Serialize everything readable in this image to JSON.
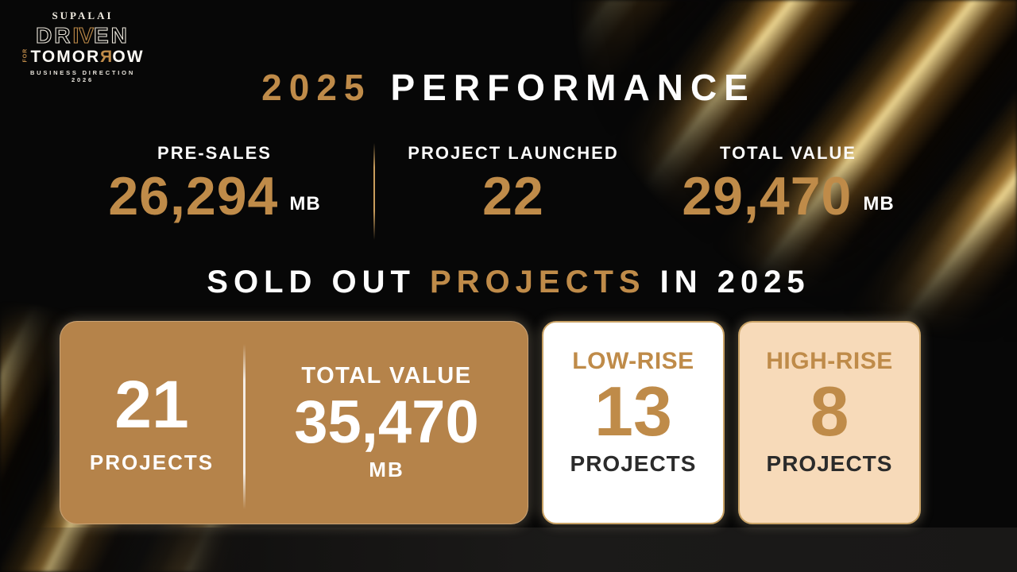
{
  "logo": {
    "brand": "SUPALAI",
    "driven": {
      "p1": "DR",
      "p2": "IV",
      "p3": "EN"
    },
    "for_text": "FOR",
    "tomorrow": {
      "p1": "TOMOR",
      "p2": "R",
      "p3": "OW"
    },
    "tagline": "BUSINESS DIRECTION 2026"
  },
  "title": {
    "year": "2025",
    "word": "PERFORMANCE"
  },
  "stats": [
    {
      "label": "PRE-SALES",
      "value": "26,294",
      "unit": "MB"
    },
    {
      "label": "PROJECT LAUNCHED",
      "value": "22",
      "unit": ""
    },
    {
      "label": "TOTAL VALUE",
      "value": "29,470",
      "unit": "MB"
    }
  ],
  "section_title": {
    "p1": "SOLD OUT",
    "p2": "PROJECTS",
    "p3": "IN 2025"
  },
  "sold_out_card": {
    "count": "21",
    "count_label": "PROJECTS",
    "value_label": "TOTAL VALUE",
    "value": "35,470",
    "unit": "MB"
  },
  "low_rise_card": {
    "label": "LOW-RISE",
    "count": "13",
    "count_label": "PROJECTS"
  },
  "high_rise_card": {
    "label": "HIGH-RISE",
    "count": "8",
    "count_label": "PROJECTS"
  },
  "colors": {
    "gold": "#bf8b49",
    "card_brown": "#b5834a",
    "card_white": "#ffffff",
    "card_peach": "#f7dab9",
    "dark_text": "#2b2b2b",
    "background": "#070707"
  }
}
